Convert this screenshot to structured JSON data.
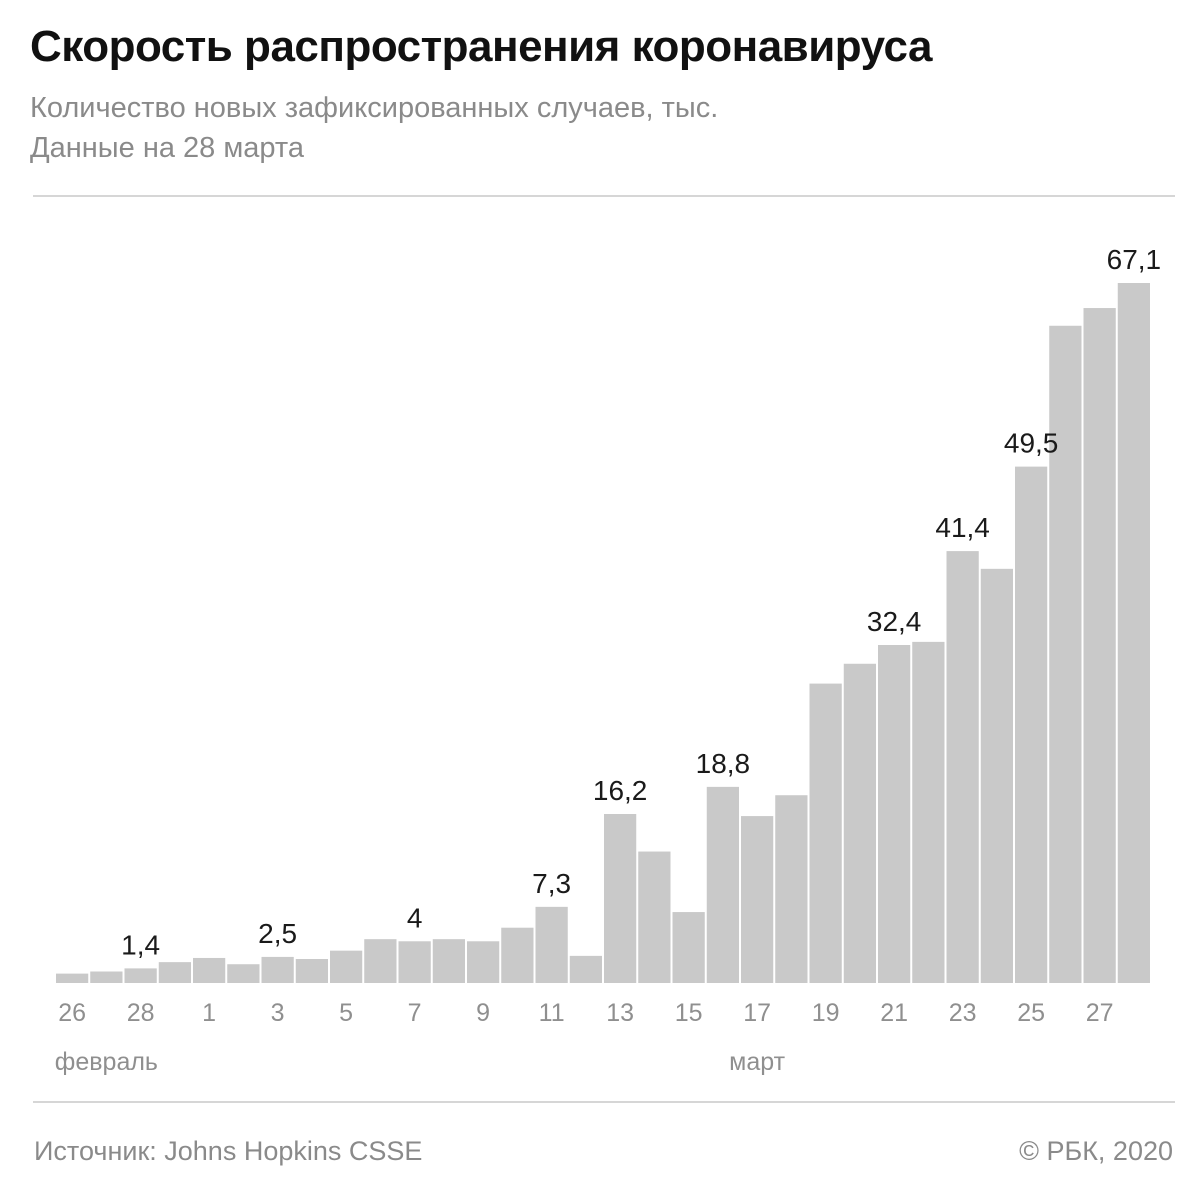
{
  "header": {
    "title": "Скорость распространения коронавируса",
    "subtitle": "Количество новых зафиксированных случаев, тыс.",
    "subtitle2": "Данные на 28 марта"
  },
  "footer": {
    "source": "Источник: Johns Hopkins CSSE",
    "copyright": "© РБК, 2020"
  },
  "colors": {
    "bar": "#c9c9c9",
    "label": "#1a1a1a",
    "muted": "#8f8f8f"
  },
  "chart_data": {
    "type": "bar",
    "title": "Скорость распространения коронавируса",
    "subtitle": "Количество новых зафиксированных случаев, тыс.",
    "ylabel": "",
    "xlabel": "",
    "ylim": [
      0,
      70
    ],
    "grid": false,
    "categories": [
      "26",
      "27",
      "28",
      "29",
      "1",
      "2",
      "3",
      "4",
      "5",
      "6",
      "7",
      "8",
      "9",
      "10",
      "11",
      "12",
      "13",
      "14",
      "15",
      "16",
      "17",
      "18",
      "19",
      "20",
      "21",
      "22",
      "23",
      "24",
      "25",
      "26",
      "27",
      "28"
    ],
    "values": [
      0.9,
      1.1,
      1.4,
      2.0,
      2.4,
      1.8,
      2.5,
      2.3,
      3.1,
      4.2,
      4.0,
      4.2,
      4.0,
      5.3,
      7.3,
      2.6,
      16.2,
      12.6,
      6.8,
      18.8,
      16.0,
      18.0,
      28.7,
      30.6,
      32.4,
      32.7,
      41.4,
      39.7,
      49.5,
      63.0,
      64.7,
      67.1
    ],
    "data_labels": [
      {
        "index": 2,
        "text": "1,4"
      },
      {
        "index": 6,
        "text": "2,5"
      },
      {
        "index": 10,
        "text": "4"
      },
      {
        "index": 14,
        "text": "7,3"
      },
      {
        "index": 16,
        "text": "16,2"
      },
      {
        "index": 19,
        "text": "18,8"
      },
      {
        "index": 24,
        "text": "32,4"
      },
      {
        "index": 26,
        "text": "41,4"
      },
      {
        "index": 28,
        "text": "49,5"
      },
      {
        "index": 31,
        "text": "67,1"
      }
    ],
    "tick_labels": [
      {
        "index": 0,
        "text": "26"
      },
      {
        "index": 2,
        "text": "28"
      },
      {
        "index": 4,
        "text": "1"
      },
      {
        "index": 6,
        "text": "3"
      },
      {
        "index": 8,
        "text": "5"
      },
      {
        "index": 10,
        "text": "7"
      },
      {
        "index": 12,
        "text": "9"
      },
      {
        "index": 14,
        "text": "11"
      },
      {
        "index": 16,
        "text": "13"
      },
      {
        "index": 18,
        "text": "15"
      },
      {
        "index": 20,
        "text": "17"
      },
      {
        "index": 22,
        "text": "19"
      },
      {
        "index": 24,
        "text": "21"
      },
      {
        "index": 26,
        "text": "23"
      },
      {
        "index": 28,
        "text": "25"
      },
      {
        "index": 30,
        "text": "27"
      }
    ],
    "month_labels": [
      {
        "index": 1,
        "text": "февраль"
      },
      {
        "index": 20,
        "text": "март"
      }
    ]
  }
}
